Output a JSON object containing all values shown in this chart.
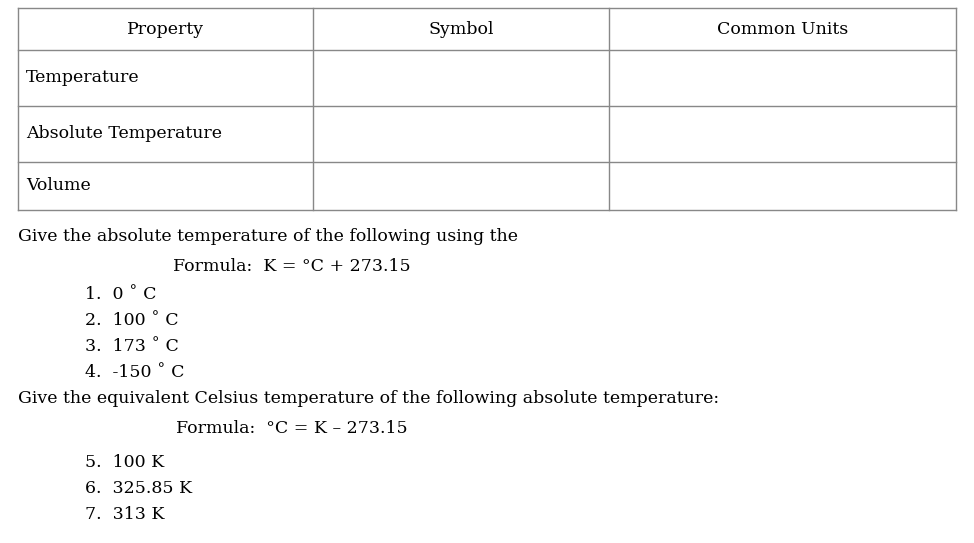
{
  "background_color": "#ffffff",
  "table_headers": [
    "Property",
    "Symbol",
    "Common Units"
  ],
  "table_rows": [
    [
      "Temperature",
      "",
      ""
    ],
    [
      "Absolute Temperature",
      "",
      ""
    ],
    [
      "Volume",
      "",
      ""
    ]
  ],
  "section1_title": "Give the absolute temperature of the following using the",
  "section1_formula": "Formula:  K = °C + 273.15",
  "section1_items": [
    "1.  0 ˚ C",
    "2.  100 ˚ C",
    "3.  173 ˚ C",
    "4.  -150 ˚ C"
  ],
  "section2_title": "Give the equivalent Celsius temperature of the following absolute temperature:",
  "section2_formula": "Formula:  °C = K – 273.15",
  "section2_items": [
    "5.  100 K",
    "6.  325.85 K",
    "7.  313 K"
  ],
  "font_size": 12.5,
  "text_color": "#000000",
  "table_line_color": "#888888",
  "fig_width": 9.74,
  "fig_height": 5.43,
  "dpi": 100
}
